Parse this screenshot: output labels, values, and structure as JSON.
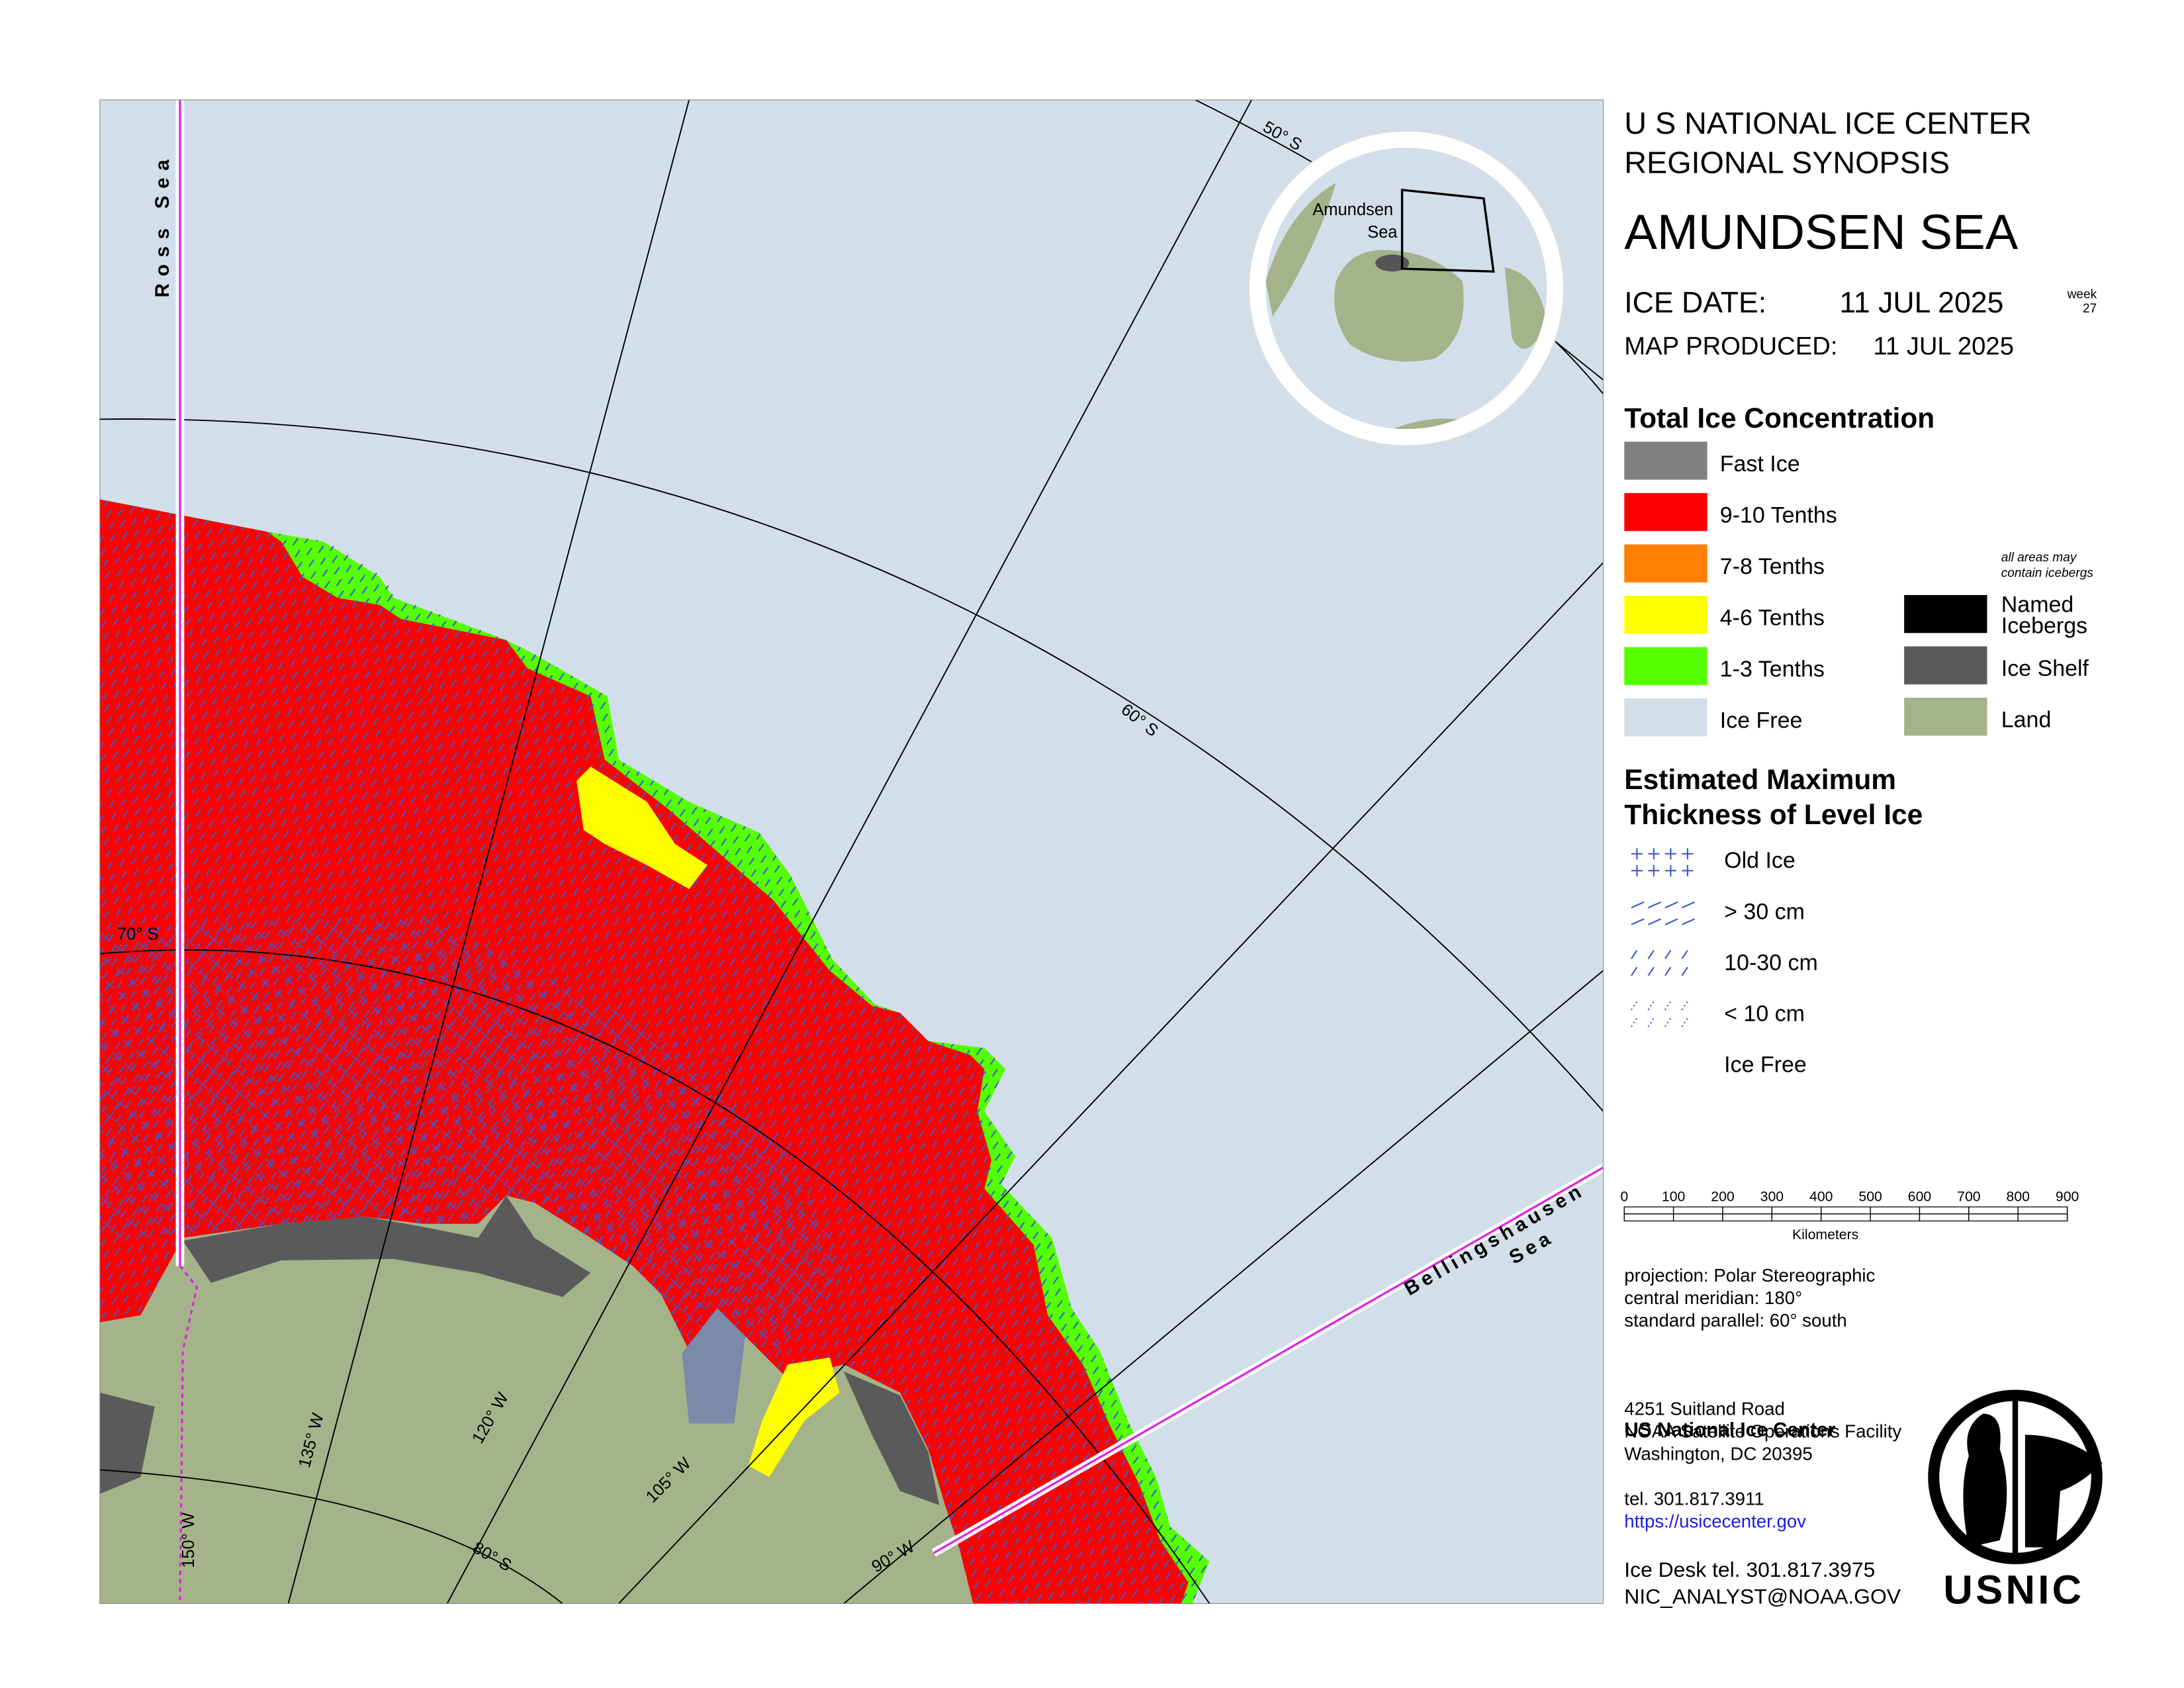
{
  "map": {
    "sea_labels": {
      "ross": "Ross Sea",
      "bellingshausen": [
        "Bellingshausen",
        "Sea"
      ]
    },
    "graticule_labels": [
      "50° S",
      "60° S",
      "70° S",
      "80° S",
      "150° W",
      "135° W",
      "120° W",
      "105° W",
      "90° W"
    ],
    "inset_label": [
      "Amundsen",
      "Sea"
    ]
  },
  "header": {
    "agency": [
      "U S NATIONAL ICE CENTER",
      "REGIONAL SYNOPSIS"
    ],
    "region": "AMUNDSEN SEA",
    "ice_date_label": "ICE DATE:",
    "ice_date": "11 JUL 2025",
    "week_label": "week",
    "week": 27,
    "produced_label": "MAP PRODUCED:",
    "produced_date": "11 JUL 2025"
  },
  "concentration": {
    "title": "Total Ice Concentration",
    "items": [
      {
        "label": "Fast Ice",
        "color": "#808080"
      },
      {
        "label": "9-10 Tenths",
        "color": "#ff0000"
      },
      {
        "label": "7-8 Tenths",
        "color": "#ff7f00"
      },
      {
        "label": "4-6 Tenths",
        "color": "#ffff00"
      },
      {
        "label": "1-3 Tenths",
        "color": "#55ff00"
      },
      {
        "label": "Ice Free",
        "color": "#d2dfeb"
      }
    ],
    "note": [
      "all areas may",
      "contain icebergs"
    ],
    "extra_items": [
      {
        "label": [
          "Named",
          "Icebergs"
        ],
        "color": "#000000"
      },
      {
        "label": [
          "Ice Shelf"
        ],
        "color": "#5a5a5a"
      },
      {
        "label": [
          "Land"
        ],
        "color": "#a5b38a"
      }
    ]
  },
  "thickness": {
    "title": [
      "Estimated Maximum",
      "Thickness of Level Ice"
    ],
    "items": [
      "Old Ice",
      "> 30 cm",
      "10-30 cm",
      "< 10 cm",
      "Ice Free"
    ]
  },
  "scale": {
    "ticks": [
      0,
      100,
      200,
      300,
      400,
      500,
      600,
      700,
      800,
      900
    ],
    "unit": "Kilometers"
  },
  "projection": [
    "projection: Polar Stereographic",
    "central meridian: 180°",
    "standard parallel:  60° south"
  ],
  "contact": {
    "name": "US National Ice Center",
    "address": [
      "4251 Suitland Road",
      "NOAA Satellite Operations Facility",
      "Washington, DC  20395"
    ],
    "tel": "tel. 301.817.3911",
    "url": "https://usicecenter.gov",
    "ice_desk": "Ice Desk tel. 301.817.3975",
    "email": "NIC_ANALYST@NOAA.GOV"
  },
  "logo": "USNIC"
}
